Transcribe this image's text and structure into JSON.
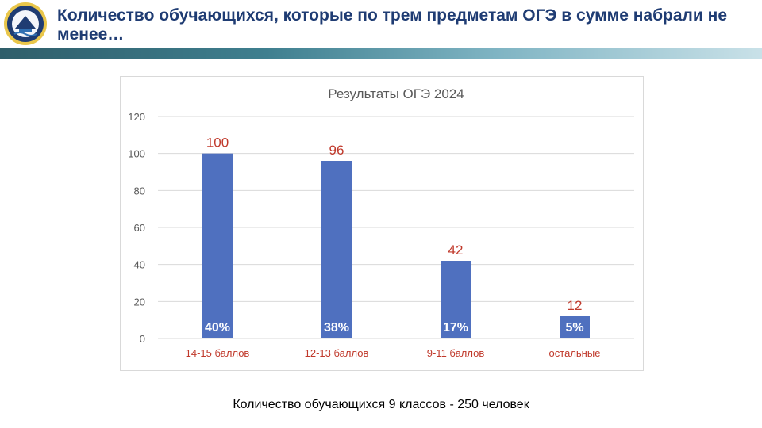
{
  "header": {
    "title": "Количество обучающихся, которые по трем предметам ОГЭ в сумме набрали не менее…"
  },
  "colors": {
    "title": "#1f3c73",
    "bar": "#4f70bf",
    "value_label": "#c0392b",
    "category_label": "#c0392b",
    "percent_label": "#ffffff"
  },
  "chart_data": {
    "type": "bar",
    "title": "Результаты ОГЭ 2024",
    "categories": [
      "14-15 баллов",
      "12-13 баллов",
      "9-11 баллов",
      "остальные"
    ],
    "values": [
      100,
      96,
      42,
      12
    ],
    "percent_labels": [
      "40%",
      "38%",
      "17%",
      "5%"
    ],
    "ylim": [
      0,
      120
    ],
    "yticks": [
      0,
      20,
      40,
      60,
      80,
      100,
      120
    ],
    "grid": true,
    "legend": "none",
    "xlabel": "",
    "ylabel": ""
  },
  "footer": {
    "note": "Количество обучающихся  9 классов - 250 человек"
  }
}
